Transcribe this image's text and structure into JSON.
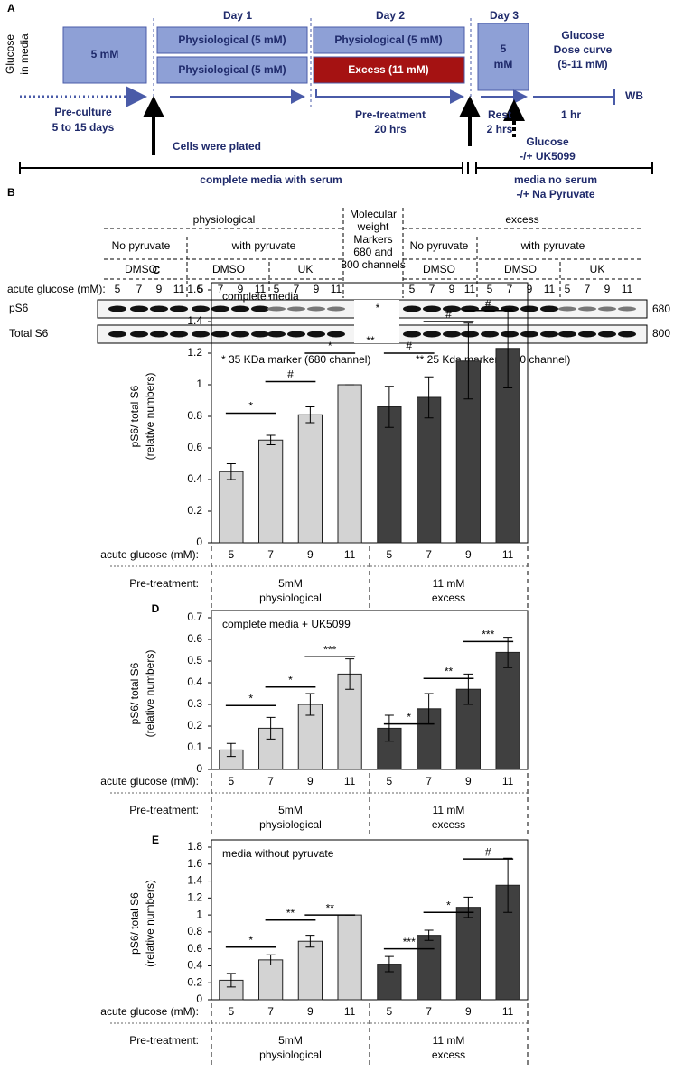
{
  "panel_a": {
    "label": "A",
    "y_label": [
      "Glucose",
      "in media"
    ],
    "days": [
      "Day 1",
      "Day 2",
      "Day 3"
    ],
    "preculture_box": "5 mM",
    "day1_boxes": [
      "Physiological (5 mM)",
      "Physiological (5 mM)"
    ],
    "day2_boxes": [
      "Physiological (5 mM)",
      "Excess (11 mM)"
    ],
    "day3_box": [
      "5",
      "mM"
    ],
    "dose_curve": [
      "Glucose",
      "Dose curve",
      "(5-11 mM)"
    ],
    "readout": "WB",
    "pre_culture": [
      "Pre-culture",
      "5 to 15 days"
    ],
    "plating": "Cells were plated",
    "pre_treatment": [
      "Pre-treatment",
      "20 hrs"
    ],
    "rest": [
      "Rest",
      "2 hrs"
    ],
    "dose_time": "1 hr",
    "acute": [
      "Glucose",
      "-/+ UK5099"
    ],
    "media_serum": "complete media with serum",
    "media_no_serum": [
      "media no serum",
      "-/+ Na Pyruvate"
    ]
  },
  "panel_b": {
    "label": "B",
    "groups": [
      "physiological",
      "excess"
    ],
    "marker_note": [
      "Molecular",
      "weight",
      "Markers",
      "680 and",
      "800 channels"
    ],
    "pyruvate": [
      "No pyruvate",
      "with pyruvate",
      "No pyruvate",
      "with pyruvate"
    ],
    "treatment": [
      "DMSO",
      "DMSO",
      "UK",
      "DMSO",
      "DMSO",
      "UK"
    ],
    "row_label": "acute glucose (mM):",
    "lanes": [
      5,
      7,
      9,
      11,
      5,
      7,
      9,
      11,
      5,
      7,
      9,
      11,
      5,
      7,
      9,
      11,
      5,
      7,
      9,
      11,
      5,
      7,
      9,
      11
    ],
    "blots": [
      "pS6",
      "Total S6"
    ],
    "channels": [
      "680",
      "800"
    ],
    "marker_stars": [
      "*",
      "**"
    ],
    "footnotes": [
      "*  35 KDa marker (680 channel)",
      "**  25 Kda marker ( 800 channel)"
    ]
  },
  "chart_data": [
    {
      "type": "bar",
      "panel": "C",
      "title": "complete media",
      "y_label": [
        "pS6/ total S6",
        "(relative numbers)"
      ],
      "categories": [
        "5",
        "7",
        "9",
        "11",
        "5",
        "7",
        "9",
        "11"
      ],
      "values": [
        0.45,
        0.65,
        0.81,
        1.0,
        0.86,
        0.92,
        1.15,
        1.23
      ],
      "errors": [
        0.05,
        0.03,
        0.05,
        0,
        0.13,
        0.13,
        0.24,
        0.25
      ],
      "colors": [
        "#d3d3d3",
        "#d3d3d3",
        "#d3d3d3",
        "#d3d3d3",
        "#404040",
        "#404040",
        "#404040",
        "#404040"
      ],
      "ylim": [
        0,
        1.6
      ],
      "yticks": [
        0,
        0.2,
        0.4,
        0.6,
        0.8,
        1,
        1.2,
        1.4,
        1.6
      ],
      "annotations": [
        {
          "text": "*",
          "y": 0.82
        },
        {
          "text": "#",
          "y": 1.02
        },
        {
          "text": "*",
          "y": 1.2
        },
        {
          "text": "#",
          "y": 1.2
        },
        {
          "text": "#",
          "y": 1.4
        },
        {
          "text": "#",
          "y": 1.47
        }
      ],
      "row_labels": [
        "acute glucose (mM):",
        "Pre-treatment:"
      ],
      "groups": [
        [
          "5mM",
          "physiological"
        ],
        [
          "11 mM",
          "excess"
        ]
      ]
    },
    {
      "type": "bar",
      "panel": "D",
      "title": "complete media + UK5099",
      "y_label": [
        "pS6/ total S6",
        "(relative numbers)"
      ],
      "categories": [
        "5",
        "7",
        "9",
        "11",
        "5",
        "7",
        "9",
        "11"
      ],
      "values": [
        0.09,
        0.19,
        0.3,
        0.44,
        0.19,
        0.28,
        0.37,
        0.54
      ],
      "errors": [
        0.03,
        0.05,
        0.05,
        0.07,
        0.06,
        0.07,
        0.07,
        0.07
      ],
      "colors": [
        "#d3d3d3",
        "#d3d3d3",
        "#d3d3d3",
        "#d3d3d3",
        "#404040",
        "#404040",
        "#404040",
        "#404040"
      ],
      "ylim": [
        0,
        0.7
      ],
      "yticks": [
        0,
        0.1,
        0.2,
        0.3,
        0.4,
        0.5,
        0.6,
        0.7
      ],
      "annotations": [
        {
          "text": "*",
          "y": 0.295
        },
        {
          "text": "*",
          "y": 0.38
        },
        {
          "text": "***",
          "y": 0.52
        },
        {
          "text": "*",
          "y": 0.21
        },
        {
          "text": "**",
          "y": 0.42
        },
        {
          "text": "***",
          "y": 0.59
        }
      ],
      "row_labels": [
        "acute glucose (mM):",
        "Pre-treatment:"
      ],
      "groups": [
        [
          "5mM",
          "physiological"
        ],
        [
          "11 mM",
          "excess"
        ]
      ]
    },
    {
      "type": "bar",
      "panel": "E",
      "title": "media without pyruvate",
      "y_label": [
        "pS6/ total S6",
        "(relative numbers)"
      ],
      "categories": [
        "5",
        "7",
        "9",
        "11",
        "5",
        "7",
        "9",
        "11"
      ],
      "values": [
        0.23,
        0.47,
        0.69,
        1.0,
        0.42,
        0.76,
        1.09,
        1.35
      ],
      "errors": [
        0.08,
        0.06,
        0.07,
        0,
        0.09,
        0.06,
        0.12,
        0.32
      ],
      "colors": [
        "#d3d3d3",
        "#d3d3d3",
        "#d3d3d3",
        "#d3d3d3",
        "#404040",
        "#404040",
        "#404040",
        "#404040"
      ],
      "ylim": [
        0,
        1.8
      ],
      "yticks": [
        0,
        0.2,
        0.4,
        0.6,
        0.8,
        1,
        1.2,
        1.4,
        1.6,
        1.8
      ],
      "annotations": [
        {
          "text": "*",
          "y": 0.62
        },
        {
          "text": "**",
          "y": 0.94
        },
        {
          "text": "**",
          "y": 1.0
        },
        {
          "text": "***",
          "y": 0.6
        },
        {
          "text": "*",
          "y": 1.03
        },
        {
          "text": "#",
          "y": 1.66
        }
      ],
      "row_labels": [
        "acute glucose (mM):",
        "Pre-treatment:"
      ],
      "groups": [
        [
          "5mM",
          "physiological"
        ],
        [
          "11 mM",
          "excess"
        ]
      ]
    }
  ]
}
